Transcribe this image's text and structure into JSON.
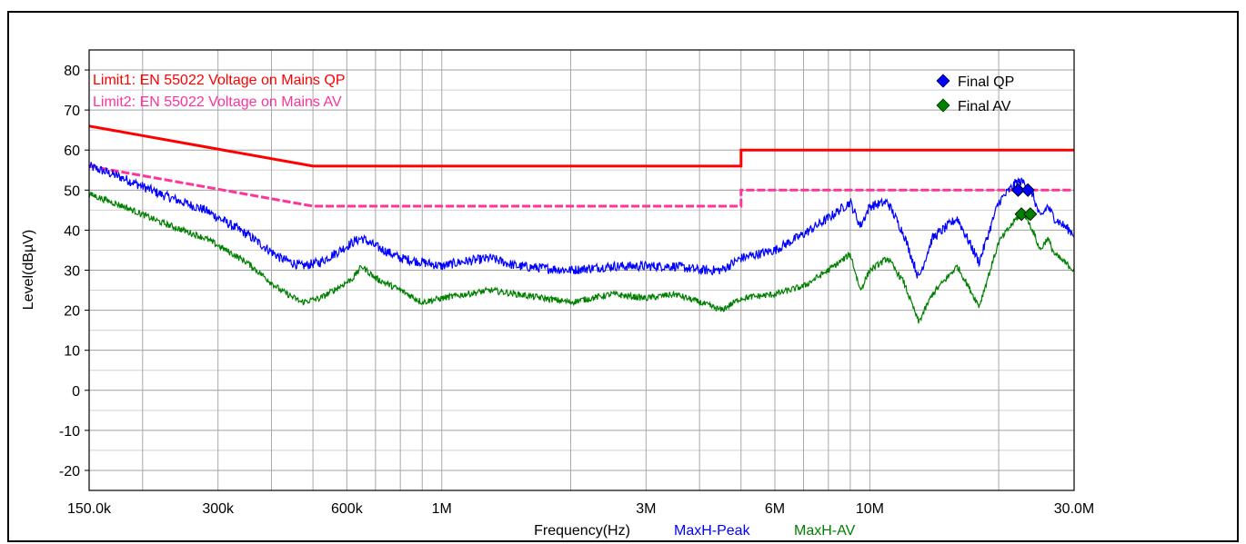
{
  "chart_data": {
    "type": "line",
    "title": "",
    "xlabel": "Frequency(Hz)",
    "ylabel": "Level(dBµV)",
    "xscale": "log",
    "xlim": [
      150000,
      30000000
    ],
    "ylim": [
      -25,
      85
    ],
    "grid": true,
    "xticks": [
      {
        "value": 150000,
        "label": "150.0k"
      },
      {
        "value": 300000,
        "label": "300k"
      },
      {
        "value": 600000,
        "label": "600k"
      },
      {
        "value": 1000000,
        "label": "1M"
      },
      {
        "value": 3000000,
        "label": "3M"
      },
      {
        "value": 6000000,
        "label": "6M"
      },
      {
        "value": 10000000,
        "label": "10M"
      },
      {
        "value": 30000000,
        "label": "30.0M"
      }
    ],
    "yticks": [
      80,
      70,
      60,
      50,
      40,
      30,
      20,
      10,
      0,
      -10,
      -20
    ],
    "limit_labels": [
      {
        "text": "Limit1:  EN 55022 Voltage on Mains QP",
        "color": "#ff0000"
      },
      {
        "text": "Limit2:  EN 55022 Voltage on Mains AV",
        "color": "#ff3399"
      }
    ],
    "trace_labels": [
      {
        "text": "MaxH-Peak",
        "color": "#0000ff"
      },
      {
        "text": "MaxH-AV",
        "color": "#008000"
      }
    ],
    "legend": {
      "placement": "top-right",
      "entries": [
        {
          "label": "Final QP",
          "color": "#0000ff",
          "marker": "diamond"
        },
        {
          "label": "Final AV",
          "color": "#008000",
          "marker": "diamond"
        }
      ]
    },
    "limits": [
      {
        "id": "limit1",
        "color": "#ff0000",
        "style": "solid",
        "points": [
          [
            150000,
            66
          ],
          [
            500000,
            56
          ],
          [
            5000000,
            56
          ],
          [
            5000000,
            60
          ],
          [
            30000000,
            60
          ]
        ]
      },
      {
        "id": "limit2",
        "color": "#ff3399",
        "style": "dashed",
        "points": [
          [
            150000,
            56
          ],
          [
            500000,
            46
          ],
          [
            5000000,
            46
          ],
          [
            5000000,
            50
          ],
          [
            30000000,
            50
          ]
        ]
      }
    ],
    "series": [
      {
        "id": "peak",
        "color": "#0000ff",
        "noise": 1.2,
        "points": [
          [
            150000,
            56
          ],
          [
            180000,
            53
          ],
          [
            220000,
            49
          ],
          [
            280000,
            45
          ],
          [
            350000,
            39
          ],
          [
            420000,
            33
          ],
          [
            470000,
            31
          ],
          [
            520000,
            32
          ],
          [
            580000,
            35
          ],
          [
            620000,
            37
          ],
          [
            650000,
            38
          ],
          [
            700000,
            36
          ],
          [
            800000,
            33
          ],
          [
            900000,
            32
          ],
          [
            1000000,
            31
          ],
          [
            1100000,
            32
          ],
          [
            1300000,
            33
          ],
          [
            1500000,
            31
          ],
          [
            2000000,
            30
          ],
          [
            2500000,
            31
          ],
          [
            3000000,
            31
          ],
          [
            3500000,
            31
          ],
          [
            4000000,
            30
          ],
          [
            4500000,
            30
          ],
          [
            5000000,
            33
          ],
          [
            6000000,
            35
          ],
          [
            7000000,
            39
          ],
          [
            8000000,
            43
          ],
          [
            9000000,
            47
          ],
          [
            9500000,
            41
          ],
          [
            10000000,
            46
          ],
          [
            11000000,
            47
          ],
          [
            12000000,
            39
          ],
          [
            13000000,
            28
          ],
          [
            14000000,
            38
          ],
          [
            16000000,
            43
          ],
          [
            18000000,
            32
          ],
          [
            20000000,
            47
          ],
          [
            22000000,
            52
          ],
          [
            23000000,
            52
          ],
          [
            24000000,
            49
          ],
          [
            25000000,
            43
          ],
          [
            26000000,
            46
          ],
          [
            27000000,
            43
          ],
          [
            30000000,
            39
          ]
        ]
      },
      {
        "id": "av",
        "color": "#008000",
        "noise": 0.8,
        "points": [
          [
            150000,
            49
          ],
          [
            180000,
            46
          ],
          [
            220000,
            42
          ],
          [
            280000,
            38
          ],
          [
            350000,
            32
          ],
          [
            420000,
            25
          ],
          [
            470000,
            22
          ],
          [
            520000,
            23
          ],
          [
            580000,
            26
          ],
          [
            620000,
            28
          ],
          [
            650000,
            31
          ],
          [
            700000,
            28
          ],
          [
            800000,
            25
          ],
          [
            900000,
            22
          ],
          [
            1000000,
            23
          ],
          [
            1300000,
            25
          ],
          [
            1500000,
            24
          ],
          [
            2000000,
            22
          ],
          [
            2500000,
            24
          ],
          [
            3000000,
            23
          ],
          [
            3500000,
            24
          ],
          [
            4000000,
            22
          ],
          [
            4500000,
            20
          ],
          [
            5000000,
            23
          ],
          [
            6000000,
            24
          ],
          [
            7000000,
            26
          ],
          [
            8000000,
            30
          ],
          [
            9000000,
            34
          ],
          [
            9500000,
            25
          ],
          [
            10000000,
            30
          ],
          [
            11000000,
            33
          ],
          [
            12000000,
            27
          ],
          [
            13000000,
            17
          ],
          [
            14000000,
            24
          ],
          [
            16000000,
            31
          ],
          [
            18000000,
            21
          ],
          [
            20000000,
            37
          ],
          [
            22000000,
            43
          ],
          [
            23000000,
            44
          ],
          [
            24000000,
            40
          ],
          [
            25000000,
            35
          ],
          [
            26000000,
            38
          ],
          [
            27000000,
            34
          ],
          [
            30000000,
            30
          ]
        ]
      }
    ],
    "markers": [
      {
        "series": "Final QP",
        "color": "#0000ff",
        "points": [
          [
            22200000,
            50
          ],
          [
            23400000,
            50
          ]
        ]
      },
      {
        "series": "Final AV",
        "color": "#008000",
        "points": [
          [
            22600000,
            44
          ],
          [
            23700000,
            44
          ]
        ]
      }
    ]
  }
}
